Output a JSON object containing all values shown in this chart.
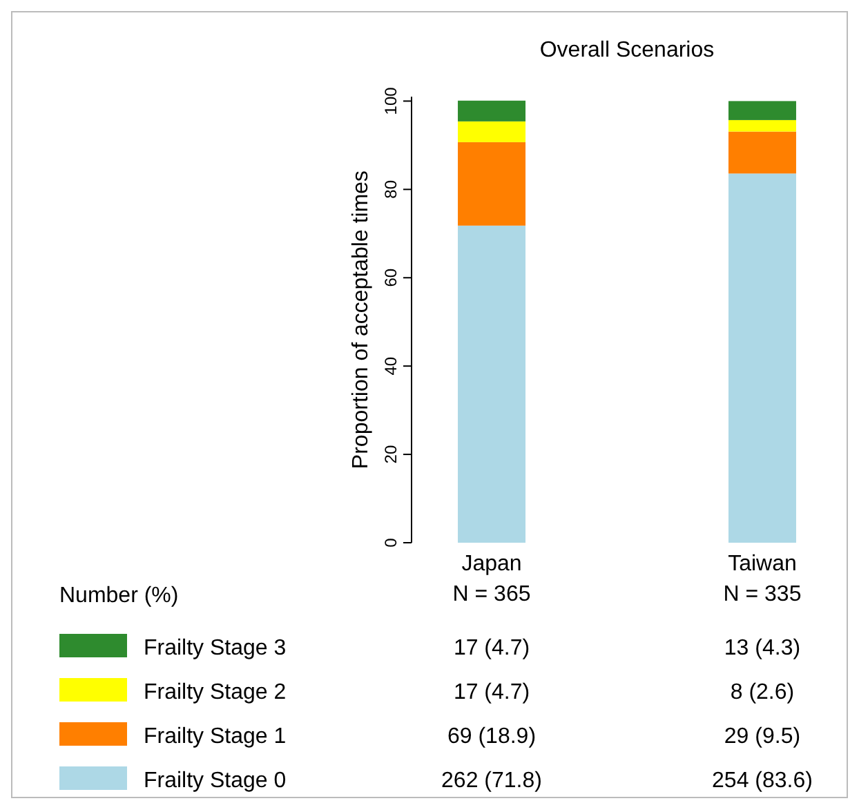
{
  "chart_data": {
    "type": "bar",
    "title": "Overall Scenarios",
    "ylabel": "Proportion of acceptable times",
    "categories": [
      "Japan",
      "Taiwan"
    ],
    "stacked": true,
    "ylim": [
      0,
      101
    ],
    "yticks": [
      0,
      20,
      40,
      60,
      80,
      100
    ],
    "legend": "bottom",
    "annotations": [
      "N = 365",
      "N = 335",
      "Number (%)"
    ],
    "series": [
      {
        "name": "Frailty Stage 0",
        "color": "#add8e6",
        "values": [
          71.8,
          83.6
        ],
        "value_labels": [
          "262 (71.8)",
          "254 (83.6)"
        ]
      },
      {
        "name": "Frailty Stage 1",
        "color": "#ff7f00",
        "values": [
          18.9,
          9.5
        ],
        "value_labels": [
          "69 (18.9)",
          "29 (9.5)"
        ]
      },
      {
        "name": "Frailty Stage 2",
        "color": "#ffff00",
        "values": [
          4.7,
          2.6
        ],
        "value_labels": [
          "17 (4.7)",
          "8 (2.6)"
        ]
      },
      {
        "name": "Frailty Stage 3",
        "color": "#2e8b2e",
        "values": [
          4.7,
          4.3
        ],
        "value_labels": [
          "17 (4.7)",
          "13 (4.3)"
        ]
      }
    ]
  }
}
